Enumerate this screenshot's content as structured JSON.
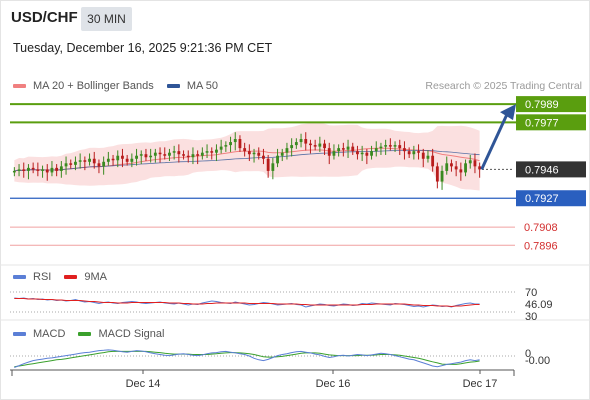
{
  "header": {
    "pair": "USD/CHF",
    "timeframe": "30 MIN",
    "datetime": "Tuesday, December 16, 2025 9:21:36 PM CET",
    "source": "Research © 2025 Trading Central"
  },
  "legends": {
    "main": [
      {
        "label": "MA 20 + Bollinger Bands",
        "color": "#f08080"
      },
      {
        "label": "MA 50",
        "color": "#2f5597"
      }
    ],
    "rsi": [
      {
        "label": "RSI",
        "color": "#5b7fd6"
      },
      {
        "label": "9MA",
        "color": "#e02020"
      }
    ],
    "macd": [
      {
        "label": "MACD",
        "color": "#5b7fd6"
      },
      {
        "label": "MACD Signal",
        "color": "#3aa02c"
      }
    ]
  },
  "colors": {
    "resistance": "#5a9e0f",
    "support": "#2a5fbf",
    "secondary_support": "#d32f2f",
    "current_price": "#333333",
    "candle_up": "#3a8a20",
    "candle_down": "#b81c1c",
    "band_fill": "#fbe0e0",
    "arrow": "#2f5597"
  },
  "chart_data": [
    {
      "type": "candlestick",
      "title": "USD/CHF",
      "timeframe": "30 MIN",
      "x_tick_labels": [
        "Dec 14",
        "Dec 16",
        "Dec 17"
      ],
      "ylim": [
        0.7885,
        0.7995
      ],
      "close_series": [
        0.7945,
        0.7946,
        0.7945,
        0.7947,
        0.7946,
        0.7945,
        0.7946,
        0.7944,
        0.7947,
        0.7945,
        0.7948,
        0.795,
        0.7949,
        0.7951,
        0.7952,
        0.7951,
        0.7953,
        0.795,
        0.7948,
        0.7951,
        0.7953,
        0.7952,
        0.7955,
        0.7953,
        0.7951,
        0.7953,
        0.7955,
        0.7956,
        0.7954,
        0.7955,
        0.7957,
        0.7956,
        0.7955,
        0.7957,
        0.7958,
        0.7956,
        0.7955,
        0.7954,
        0.7956,
        0.7955,
        0.7957,
        0.7958,
        0.7957,
        0.7959,
        0.7961,
        0.7962,
        0.7964,
        0.7966,
        0.796,
        0.7958,
        0.7956,
        0.7957,
        0.7955,
        0.7953,
        0.7945,
        0.795,
        0.7955,
        0.7957,
        0.796,
        0.7962,
        0.7964,
        0.7966,
        0.7963,
        0.7962,
        0.7961,
        0.7963,
        0.796,
        0.7955,
        0.7958,
        0.796,
        0.7959,
        0.7961,
        0.7958,
        0.7956,
        0.7957,
        0.7955,
        0.7958,
        0.796,
        0.7961,
        0.7962,
        0.7961,
        0.7962,
        0.796,
        0.7958,
        0.7956,
        0.7958,
        0.7957,
        0.7953,
        0.7955,
        0.7948,
        0.7938,
        0.7945,
        0.795,
        0.7948,
        0.7946,
        0.7944,
        0.795,
        0.7952,
        0.7948,
        0.7946
      ],
      "levels": [
        {
          "label": "0.7989",
          "value": 0.7989,
          "kind": "resistance"
        },
        {
          "label": "0.7977",
          "value": 0.7977,
          "kind": "resistance"
        },
        {
          "label": "0.7946",
          "value": 0.7946,
          "kind": "current"
        },
        {
          "label": "0.7927",
          "value": 0.7927,
          "kind": "support"
        },
        {
          "label": "0.7908",
          "value": 0.7908,
          "kind": "secondary_support"
        },
        {
          "label": "0.7896",
          "value": 0.7896,
          "kind": "secondary_support"
        }
      ],
      "indicators": [
        "MA 20 + Bollinger Bands",
        "MA 50"
      ]
    },
    {
      "type": "line",
      "name": "RSI panel",
      "series": [
        {
          "name": "RSI",
          "color": "#5b7fd6",
          "last_label": "46.09"
        },
        {
          "name": "9MA",
          "color": "#e02020"
        }
      ],
      "tick_labels": [
        "70",
        "30"
      ],
      "rsi_values": [
        58,
        57,
        58,
        56,
        57,
        55,
        56,
        54,
        55,
        53,
        54,
        52,
        53,
        55,
        52,
        50,
        51,
        49,
        47,
        49,
        50,
        48,
        47,
        49,
        50,
        51,
        50,
        48,
        47,
        48,
        49,
        50,
        48,
        47,
        46,
        48,
        46,
        44,
        46,
        45,
        48,
        50,
        52,
        51,
        49,
        48,
        47,
        50,
        48,
        46,
        44,
        45,
        47,
        49,
        48,
        46,
        44,
        45,
        46,
        47,
        45,
        44,
        40,
        42,
        44,
        46,
        45,
        43,
        42,
        44,
        46,
        45,
        43,
        44,
        47,
        46,
        48,
        47,
        46,
        45,
        44,
        47,
        46,
        45,
        43,
        41,
        42,
        40,
        42,
        44,
        43,
        41,
        42,
        40,
        43,
        45,
        47,
        48,
        46,
        46.09
      ],
      "ma_values": [
        57,
        57,
        57,
        56,
        56,
        56,
        55,
        55,
        55,
        54,
        54,
        53,
        53,
        53,
        53,
        52,
        51,
        51,
        50,
        49,
        49,
        49,
        48,
        48,
        48,
        49,
        49,
        49,
        49,
        49,
        49,
        49,
        49,
        48,
        48,
        48,
        47,
        47,
        46,
        46,
        46,
        47,
        47,
        48,
        48,
        48,
        48,
        48,
        48,
        48,
        47,
        47,
        47,
        47,
        47,
        47,
        46,
        46,
        46,
        46,
        46,
        45,
        45,
        44,
        44,
        44,
        44,
        44,
        44,
        44,
        44,
        44,
        44,
        44,
        45,
        45,
        45,
        46,
        46,
        46,
        46,
        46,
        46,
        46,
        45,
        44,
        44,
        43,
        43,
        43,
        42,
        42,
        42,
        41,
        42,
        42,
        43,
        44,
        45,
        45
      ]
    },
    {
      "type": "line",
      "name": "MACD panel",
      "series": [
        {
          "name": "MACD",
          "color": "#5b7fd6",
          "last_label": "-0.00"
        },
        {
          "name": "MACD Signal",
          "color": "#3aa02c"
        }
      ],
      "tick_labels": [
        "0",
        "-0.00"
      ],
      "macd_values": [
        -0.0003,
        -0.00025,
        -0.0002,
        -0.00016,
        -0.00012,
        -0.0001,
        -8e-05,
        -6e-05,
        -5e-05,
        -3e-05,
        -1e-05,
        1e-05,
        3e-05,
        5e-05,
        7e-05,
        9e-05,
        0.0001,
        0.00012,
        0.00014,
        0.00015,
        0.00016,
        0.00015,
        0.00013,
        0.00011,
        0.0001,
        0.00012,
        0.00014,
        0.00013,
        0.00011,
        8e-05,
        6e-05,
        4e-05,
        2e-05,
        1e-05,
        3e-05,
        5e-05,
        6e-05,
        4e-05,
        2e-05,
        1e-05,
        3e-05,
        6e-05,
        8e-05,
        9e-05,
        0.00011,
        0.00012,
        0.0001,
        8e-05,
        6e-05,
        4e-05,
        0.0,
        -6e-05,
        -0.0001,
        -0.00012,
        -9e-05,
        -4e-05,
        1e-05,
        4e-05,
        6e-05,
        9e-05,
        0.00011,
        0.00012,
        0.0001,
        8e-05,
        5e-05,
        3e-05,
        -1e-05,
        -4e-05,
        -2e-05,
        1e-05,
        2e-05,
        0.0,
        2e-05,
        4e-05,
        3e-05,
        1e-05,
        3e-05,
        5e-05,
        7e-05,
        6e-05,
        4e-05,
        1e-05,
        -2e-05,
        -5e-05,
        -8e-05,
        -0.0001,
        -0.00014,
        -0.00018,
        -0.00022,
        -0.00026,
        -0.00028,
        -0.00025,
        -0.00022,
        -0.0002,
        -0.00018,
        -0.00016,
        -0.00012,
        -0.0001,
        -0.00012,
        -0.0001
      ],
      "signal_values": [
        -0.00028,
        -0.00026,
        -0.00024,
        -0.00022,
        -0.0002,
        -0.00018,
        -0.00016,
        -0.00014,
        -0.00012,
        -0.0001,
        -9e-05,
        -7e-05,
        -5e-05,
        -3e-05,
        -1e-05,
        1e-05,
        3e-05,
        5e-05,
        7e-05,
        9e-05,
        0.00011,
        0.00012,
        0.00012,
        0.00012,
        0.00012,
        0.00012,
        0.00012,
        0.00012,
        0.00012,
        0.00011,
        0.0001,
        9e-05,
        7e-05,
        6e-05,
        5e-05,
        5e-05,
        5e-05,
        5e-05,
        4e-05,
        4e-05,
        4e-05,
        4e-05,
        5e-05,
        6e-05,
        7e-05,
        8e-05,
        9e-05,
        9e-05,
        8e-05,
        7e-05,
        6e-05,
        4e-05,
        1e-05,
        -2e-05,
        -3e-05,
        -3e-05,
        -2e-05,
        -1e-05,
        1e-05,
        3e-05,
        5e-05,
        7e-05,
        8e-05,
        8e-05,
        8e-05,
        7e-05,
        5e-05,
        3e-05,
        2e-05,
        1e-05,
        1e-05,
        1e-05,
        1e-05,
        1e-05,
        2e-05,
        2e-05,
        2e-05,
        3e-05,
        4e-05,
        4e-05,
        4e-05,
        3e-05,
        2e-05,
        0.0,
        -2e-05,
        -4e-05,
        -6e-05,
        -9e-05,
        -0.00012,
        -0.00015,
        -0.00018,
        -0.00021,
        -0.00022,
        -0.00022,
        -0.00022,
        -0.0002,
        -0.00018,
        -0.00016,
        -0.00015,
        -0.00013
      ]
    }
  ]
}
